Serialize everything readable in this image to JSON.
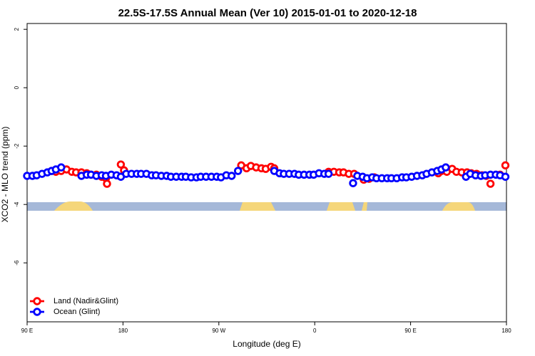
{
  "chart_data": {
    "type": "scatter",
    "title": "22.5S-17.5S Annual Mean (Ver 10)   2015-01-01 to 2020-12-18",
    "x_label": "Longitude (deg E)",
    "y_label": "XCO2 - MLO trend (ppm)",
    "xlim": [
      90,
      540
    ],
    "xticks": [
      {
        "value": 90,
        "label": "90 E"
      },
      180,
      {
        "value": 270,
        "label": "90 W"
      },
      {
        "value": 360,
        "label": "0"
      },
      {
        "value": 450,
        "label": "90 E"
      },
      {
        "value": 540,
        "label": "180"
      }
    ],
    "ylim": [
      -8.02,
      2.2
    ],
    "yticks": [
      2,
      0,
      -2,
      -4,
      -6
    ],
    "legend": "bottom-left",
    "series": [
      {
        "name": "Land (Nadir&Glint)",
        "color": "#ff0000",
        "x": [
          113,
          117,
          122,
          127,
          132,
          136,
          141,
          146,
          150,
          155,
          160,
          164,
          165,
          178,
          181,
          291,
          296,
          300,
          305,
          310,
          314,
          319,
          322,
          373,
          378,
          383,
          387,
          392,
          397,
          406,
          411,
          416,
          476,
          479,
          484,
          489,
          493,
          498,
          503,
          507,
          512,
          517,
          521,
          525,
          534,
          539
        ],
        "values": [
          -2.85,
          -2.88,
          -2.85,
          -2.8,
          -2.88,
          -2.9,
          -2.9,
          -2.93,
          -2.98,
          -2.98,
          -3.05,
          -3.1,
          -3.29,
          -2.63,
          -2.83,
          -2.66,
          -2.76,
          -2.68,
          -2.73,
          -2.76,
          -2.78,
          -2.71,
          -2.76,
          -2.88,
          -2.88,
          -2.9,
          -2.9,
          -2.95,
          -2.95,
          -3.15,
          -3.12,
          -3.07,
          -2.93,
          -2.85,
          -2.88,
          -2.78,
          -2.88,
          -2.9,
          -2.9,
          -2.93,
          -2.95,
          -3.0,
          -3.02,
          -3.29,
          -2.98,
          -2.66
        ]
      },
      {
        "name": "Ocean (Glint)",
        "color": "#0000ff",
        "x": [
          90,
          95,
          99,
          104,
          109,
          113,
          117,
          122,
          141,
          146,
          150,
          155,
          160,
          164,
          169,
          174,
          178,
          183,
          188,
          193,
          197,
          202,
          207,
          211,
          216,
          221,
          225,
          230,
          235,
          239,
          244,
          249,
          253,
          258,
          263,
          268,
          272,
          277,
          282,
          288,
          322,
          327,
          331,
          336,
          341,
          345,
          350,
          355,
          359,
          364,
          369,
          373,
          396,
          400,
          405,
          409,
          414,
          418,
          423,
          428,
          432,
          437,
          442,
          446,
          451,
          456,
          461,
          465,
          470,
          475,
          479,
          483,
          502,
          506,
          511,
          516,
          520,
          525,
          530,
          534,
          539
        ],
        "values": [
          -3.02,
          -3.02,
          -3.0,
          -2.95,
          -2.9,
          -2.85,
          -2.8,
          -2.73,
          -3.02,
          -2.98,
          -2.98,
          -3.02,
          -3.0,
          -3.02,
          -2.98,
          -3.0,
          -3.05,
          -2.95,
          -2.95,
          -2.95,
          -2.95,
          -2.95,
          -3.0,
          -3.0,
          -3.02,
          -3.02,
          -3.05,
          -3.05,
          -3.05,
          -3.05,
          -3.07,
          -3.07,
          -3.05,
          -3.05,
          -3.05,
          -3.05,
          -3.07,
          -3.0,
          -3.02,
          -2.85,
          -2.85,
          -2.93,
          -2.95,
          -2.95,
          -2.95,
          -2.98,
          -2.98,
          -2.98,
          -2.98,
          -2.93,
          -2.95,
          -2.95,
          -3.27,
          -3.02,
          -3.05,
          -3.1,
          -3.07,
          -3.1,
          -3.1,
          -3.1,
          -3.1,
          -3.1,
          -3.07,
          -3.07,
          -3.05,
          -3.02,
          -3.0,
          -2.95,
          -2.9,
          -2.85,
          -2.8,
          -2.73,
          -3.05,
          -2.95,
          -3.0,
          -3.02,
          -3.0,
          -2.98,
          -2.98,
          -3.0,
          -3.05
        ]
      }
    ]
  }
}
